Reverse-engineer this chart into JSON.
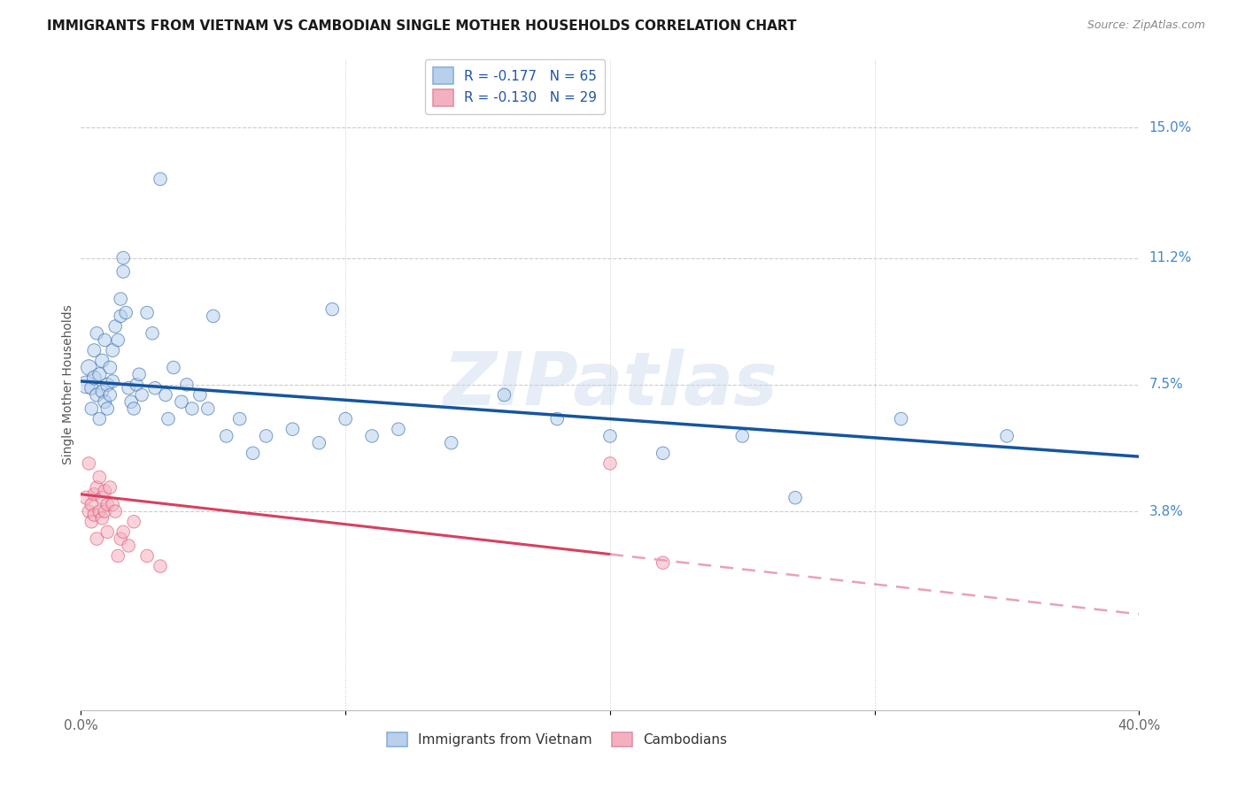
{
  "title": "IMMIGRANTS FROM VIETNAM VS CAMBODIAN SINGLE MOTHER HOUSEHOLDS CORRELATION CHART",
  "source": "Source: ZipAtlas.com",
  "ylabel": "Single Mother Households",
  "ytick_labels": [
    "15.0%",
    "11.2%",
    "7.5%",
    "3.8%"
  ],
  "ytick_values": [
    0.15,
    0.112,
    0.075,
    0.038
  ],
  "xlim": [
    0.0,
    0.4
  ],
  "ylim": [
    -0.02,
    0.17
  ],
  "legend_entry1": "R = -0.177   N = 65",
  "legend_entry2": "R = -0.130   N = 29",
  "legend_label1": "Immigrants from Vietnam",
  "legend_label2": "Cambodians",
  "scatter_color_blue": "#b8d0ec",
  "scatter_color_pink": "#f5b0c0",
  "line_color_blue": "#1555a0",
  "line_color_pink": "#d84060",
  "line_color_pink_dashed": "#e8a0b8",
  "background_color": "#ffffff",
  "grid_color": "#cccccc",
  "title_color": "#1a1a1a",
  "right_label_color": "#4488cc",
  "watermark": "ZIPatlas",
  "vietnam_x": [
    0.002,
    0.003,
    0.004,
    0.004,
    0.005,
    0.005,
    0.006,
    0.006,
    0.007,
    0.007,
    0.008,
    0.008,
    0.009,
    0.009,
    0.01,
    0.01,
    0.011,
    0.011,
    0.012,
    0.012,
    0.013,
    0.014,
    0.015,
    0.015,
    0.016,
    0.016,
    0.017,
    0.018,
    0.019,
    0.02,
    0.021,
    0.022,
    0.023,
    0.025,
    0.027,
    0.028,
    0.03,
    0.032,
    0.033,
    0.035,
    0.038,
    0.04,
    0.042,
    0.045,
    0.048,
    0.05,
    0.055,
    0.06,
    0.065,
    0.07,
    0.08,
    0.09,
    0.095,
    0.1,
    0.11,
    0.12,
    0.14,
    0.16,
    0.18,
    0.2,
    0.22,
    0.25,
    0.27,
    0.31,
    0.35
  ],
  "vietnam_y": [
    0.075,
    0.08,
    0.074,
    0.068,
    0.077,
    0.085,
    0.072,
    0.09,
    0.078,
    0.065,
    0.082,
    0.073,
    0.07,
    0.088,
    0.075,
    0.068,
    0.08,
    0.072,
    0.085,
    0.076,
    0.092,
    0.088,
    0.1,
    0.095,
    0.112,
    0.108,
    0.096,
    0.074,
    0.07,
    0.068,
    0.075,
    0.078,
    0.072,
    0.096,
    0.09,
    0.074,
    0.135,
    0.072,
    0.065,
    0.08,
    0.07,
    0.075,
    0.068,
    0.072,
    0.068,
    0.095,
    0.06,
    0.065,
    0.055,
    0.06,
    0.062,
    0.058,
    0.097,
    0.065,
    0.06,
    0.062,
    0.058,
    0.072,
    0.065,
    0.06,
    0.055,
    0.06,
    0.042,
    0.065,
    0.06
  ],
  "vietnam_sizes": [
    200,
    160,
    120,
    110,
    130,
    115,
    120,
    110,
    120,
    110,
    120,
    110,
    115,
    110,
    120,
    110,
    115,
    110,
    115,
    110,
    110,
    110,
    110,
    110,
    110,
    110,
    110,
    110,
    110,
    110,
    110,
    110,
    110,
    110,
    110,
    110,
    110,
    110,
    110,
    110,
    110,
    110,
    110,
    110,
    110,
    110,
    110,
    110,
    110,
    110,
    110,
    110,
    110,
    110,
    110,
    110,
    110,
    110,
    110,
    110,
    110,
    110,
    110,
    110,
    110
  ],
  "cambodian_x": [
    0.002,
    0.003,
    0.003,
    0.004,
    0.004,
    0.005,
    0.005,
    0.006,
    0.006,
    0.007,
    0.007,
    0.008,
    0.008,
    0.009,
    0.009,
    0.01,
    0.01,
    0.011,
    0.012,
    0.013,
    0.014,
    0.015,
    0.016,
    0.018,
    0.02,
    0.025,
    0.03,
    0.2,
    0.22
  ],
  "cambodian_y": [
    0.042,
    0.038,
    0.052,
    0.04,
    0.035,
    0.043,
    0.037,
    0.045,
    0.03,
    0.048,
    0.038,
    0.042,
    0.036,
    0.038,
    0.044,
    0.04,
    0.032,
    0.045,
    0.04,
    0.038,
    0.025,
    0.03,
    0.032,
    0.028,
    0.035,
    0.025,
    0.022,
    0.052,
    0.023
  ],
  "cambodian_sizes": [
    120,
    110,
    110,
    110,
    110,
    110,
    110,
    110,
    110,
    110,
    110,
    110,
    110,
    110,
    110,
    110,
    110,
    110,
    110,
    110,
    110,
    110,
    110,
    110,
    110,
    110,
    110,
    110,
    110
  ],
  "line_blue_x0": 0.0,
  "line_blue_y0": 0.076,
  "line_blue_x1": 0.4,
  "line_blue_y1": 0.054,
  "line_pink_x0": 0.0,
  "line_pink_y0": 0.043,
  "line_pink_x1": 0.4,
  "line_pink_y1": 0.008,
  "line_pink_solid_end": 0.2,
  "scatter_alpha": 0.55
}
